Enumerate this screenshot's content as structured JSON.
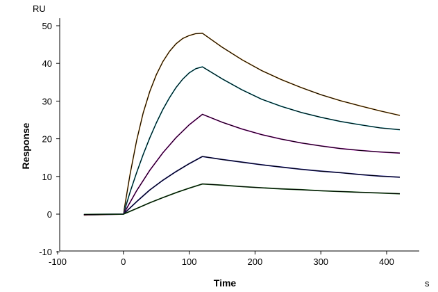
{
  "chart_data": {
    "type": "line",
    "xlabel": "Time",
    "ylabel": "Response",
    "x_unit": "s",
    "y_unit": "RU",
    "xlim": [
      -100,
      450
    ],
    "ylim": [
      -10,
      52
    ],
    "x_ticks": [
      -100,
      0,
      100,
      200,
      300,
      400
    ],
    "y_ticks": [
      -10,
      0,
      10,
      20,
      30,
      40,
      50
    ],
    "x_tick_labels": [
      "-100",
      "0",
      "100",
      "200",
      "300",
      "400"
    ],
    "y_tick_labels": [
      "-10",
      "0",
      "10",
      "20",
      "30",
      "40",
      "50"
    ],
    "grid": false,
    "legend": "none",
    "series": [
      {
        "color": "#e8a23a",
        "x": [
          -60,
          0,
          10,
          20,
          30,
          40,
          50,
          60,
          70,
          80,
          90,
          100,
          110,
          120,
          150,
          180,
          210,
          240,
          270,
          300,
          330,
          360,
          390,
          420
        ],
        "y": [
          -0.3,
          0,
          10.5,
          19.5,
          26.8,
          32.5,
          37.0,
          40.5,
          43.2,
          45.2,
          46.6,
          47.4,
          47.9,
          48.0,
          44.3,
          41.0,
          38.1,
          35.7,
          33.6,
          31.7,
          30.1,
          28.7,
          27.4,
          26.2
        ]
      },
      {
        "color": "#2bbccc",
        "x": [
          -60,
          0,
          10,
          20,
          30,
          40,
          50,
          60,
          70,
          80,
          90,
          100,
          110,
          120,
          150,
          180,
          210,
          240,
          270,
          300,
          330,
          360,
          390,
          420
        ],
        "y": [
          -0.2,
          0,
          5.8,
          11.0,
          15.8,
          20.2,
          24.2,
          27.8,
          30.9,
          33.6,
          35.8,
          37.5,
          38.6,
          39.1,
          35.9,
          33.0,
          30.5,
          28.6,
          27.0,
          25.7,
          24.6,
          23.7,
          22.9,
          22.4
        ]
      },
      {
        "color": "#cc22cc",
        "x": [
          -60,
          0,
          20,
          40,
          60,
          80,
          100,
          120,
          150,
          180,
          210,
          240,
          270,
          300,
          330,
          360,
          390,
          420
        ],
        "y": [
          -0.2,
          0,
          6.2,
          11.6,
          16.3,
          20.3,
          23.7,
          26.5,
          24.4,
          22.6,
          21.1,
          19.9,
          18.9,
          18.1,
          17.4,
          16.9,
          16.5,
          16.2
        ]
      },
      {
        "color": "#2222aa",
        "x": [
          -60,
          0,
          20,
          40,
          60,
          80,
          100,
          120,
          150,
          180,
          210,
          240,
          270,
          300,
          330,
          360,
          390,
          420
        ],
        "y": [
          -0.1,
          0,
          3.3,
          6.4,
          9.0,
          11.3,
          13.4,
          15.3,
          14.5,
          13.8,
          13.1,
          12.5,
          11.9,
          11.4,
          11.0,
          10.5,
          10.1,
          9.8
        ]
      },
      {
        "color": "#227722",
        "x": [
          -60,
          0,
          20,
          40,
          60,
          80,
          100,
          120,
          150,
          180,
          210,
          240,
          270,
          300,
          330,
          360,
          390,
          420
        ],
        "y": [
          -0.1,
          0,
          1.5,
          3.0,
          4.4,
          5.7,
          6.9,
          8.0,
          7.7,
          7.3,
          7.0,
          6.7,
          6.5,
          6.2,
          6.0,
          5.8,
          5.6,
          5.4
        ]
      }
    ]
  }
}
